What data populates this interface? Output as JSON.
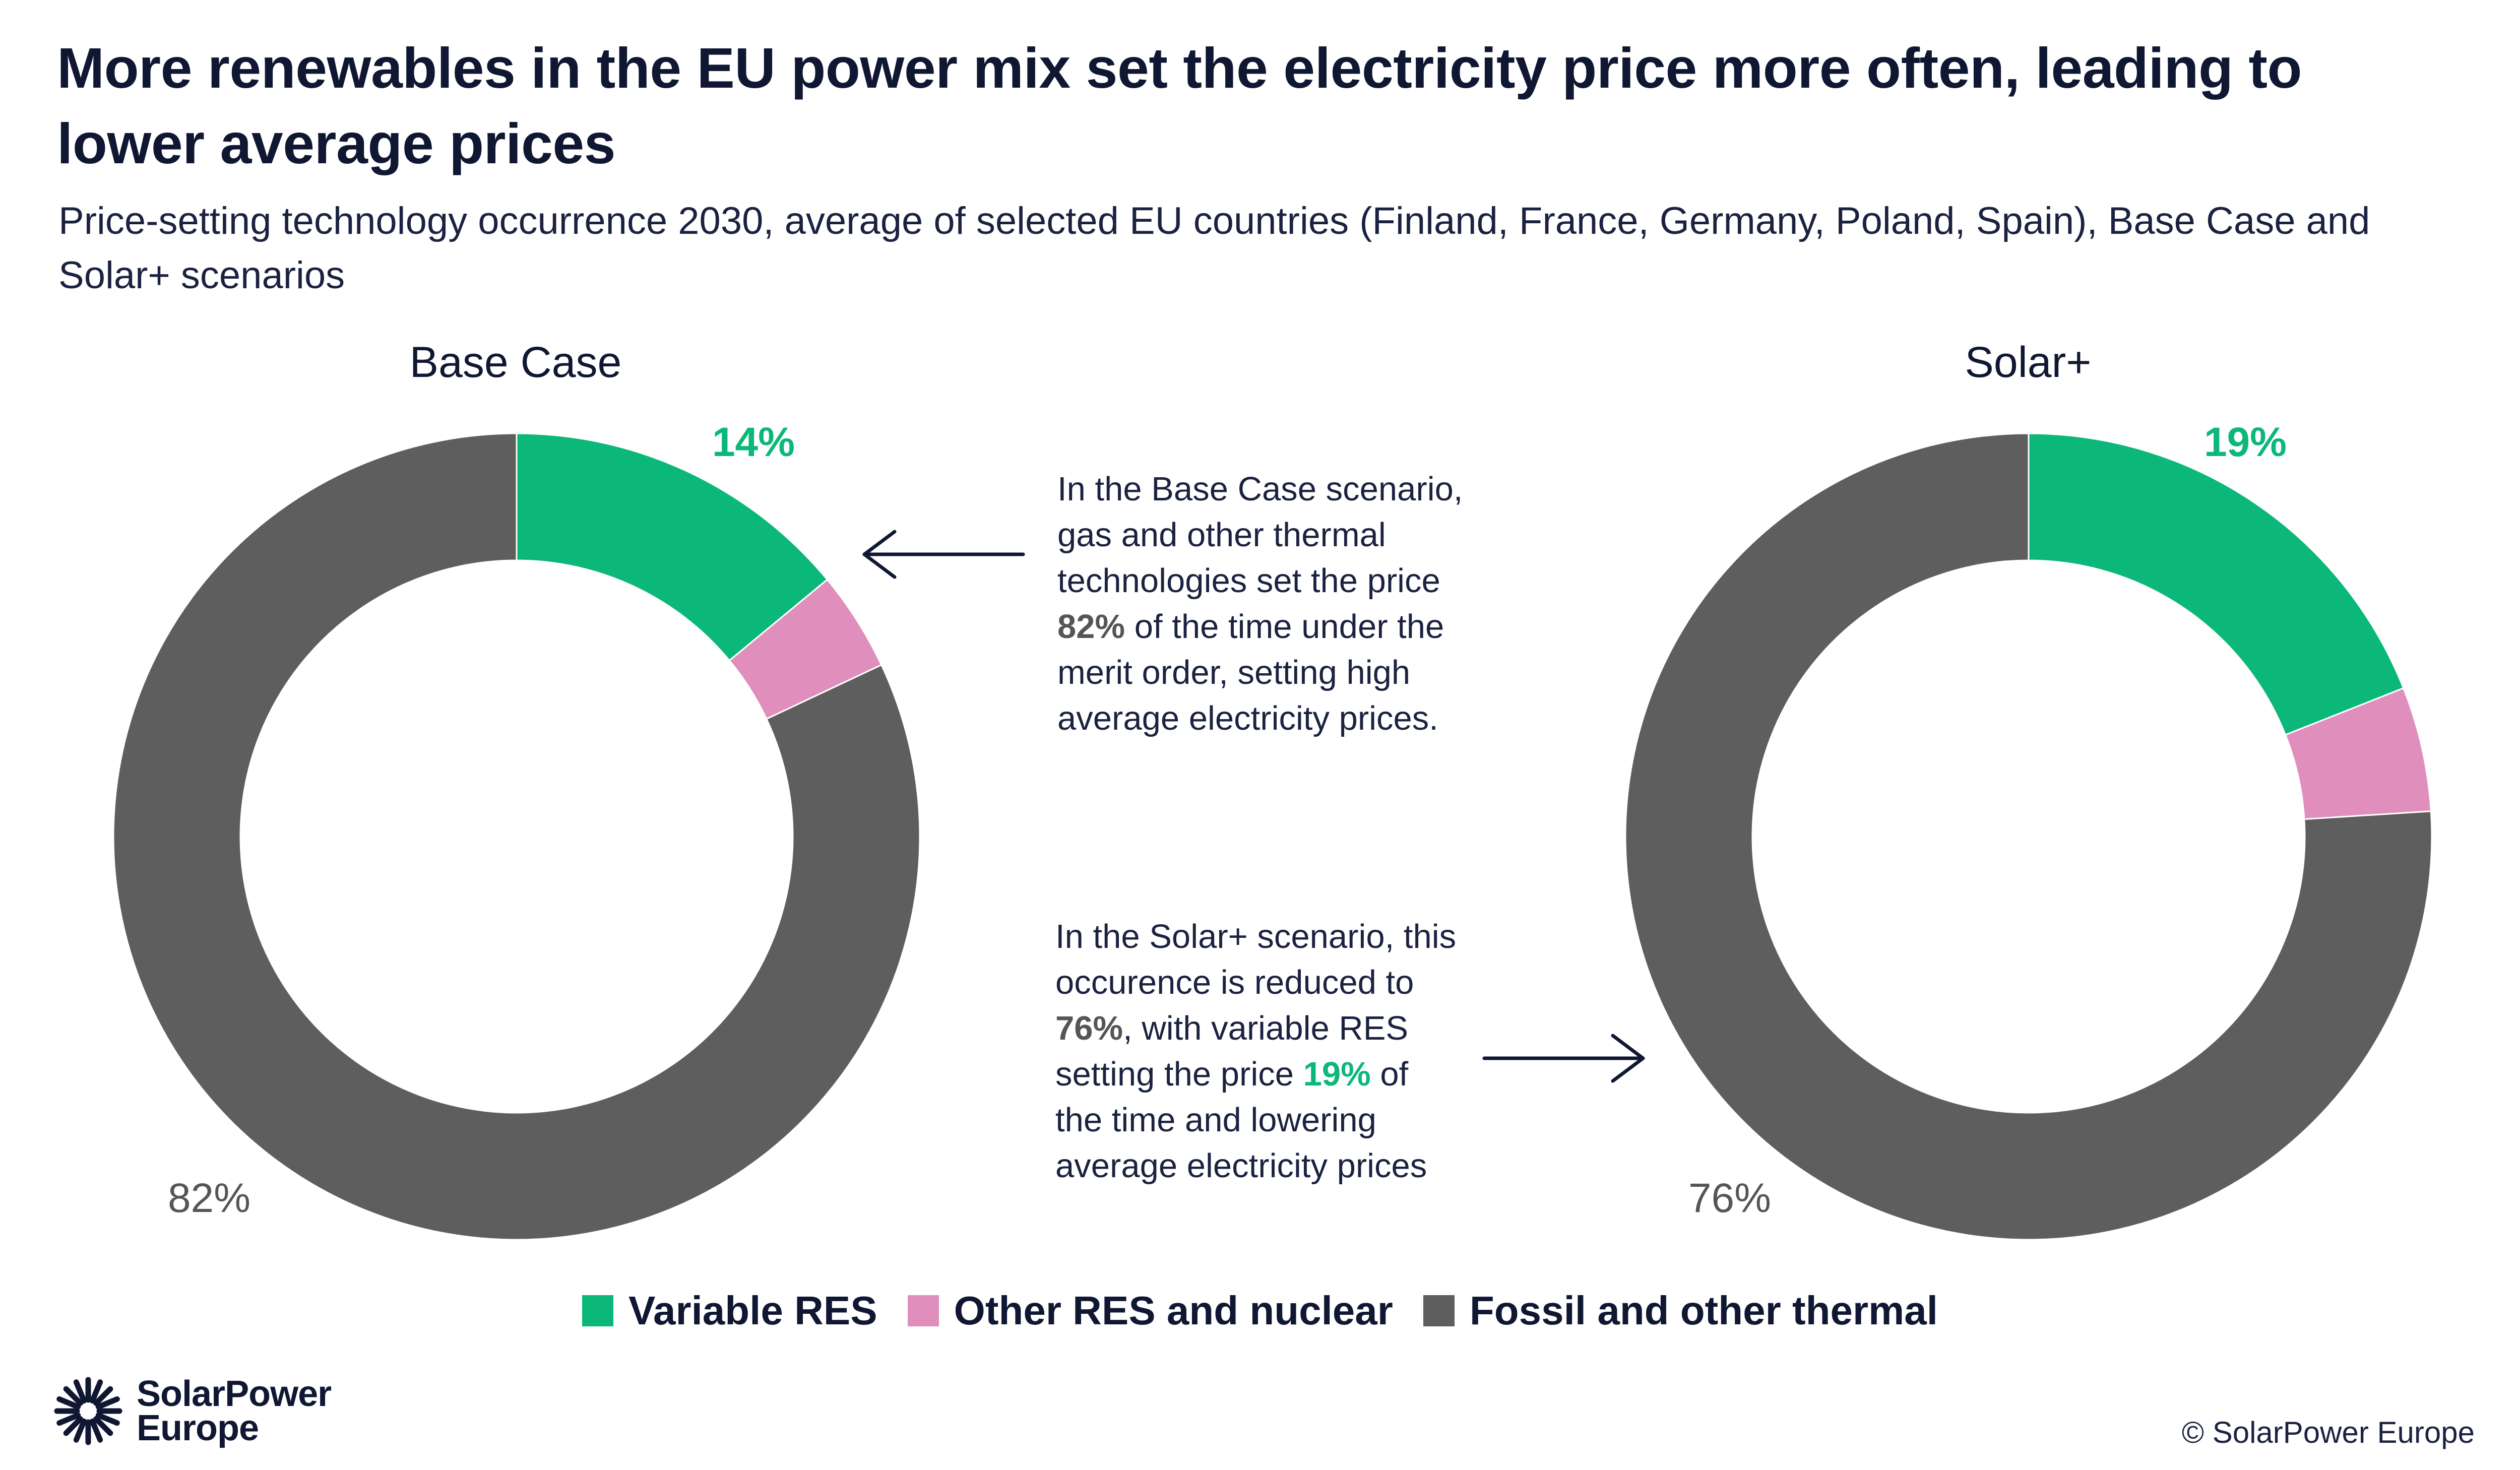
{
  "title": "More renewables in the EU power mix set the electricity price more often, leading to lower average prices",
  "subtitle": "Price-setting technology occurrence 2030, average of selected EU countries (Finland, France, Germany, Poland, Spain), Base Case and Solar+ scenarios",
  "colors": {
    "variable_res": "#0bb87a",
    "other_res": "#e08fbd",
    "fossil": "#5e5e5e",
    "text_dark": "#0f1733",
    "label_gray": "#555555"
  },
  "chart_data": [
    {
      "type": "pie",
      "donut": true,
      "title": "Base Case",
      "categories": [
        "Variable RES",
        "Other RES and nuclear",
        "Fossil and other thermal"
      ],
      "values": [
        14,
        4,
        82
      ],
      "unit": "%",
      "data_labels": {
        "variable_res": "14%",
        "fossil": "82%"
      }
    },
    {
      "type": "pie",
      "donut": true,
      "title": "Solar+",
      "categories": [
        "Variable RES",
        "Other RES and nuclear",
        "Fossil and other thermal"
      ],
      "values": [
        19,
        5,
        76
      ],
      "unit": "%",
      "data_labels": {
        "variable_res": "19%",
        "fossil": "76%"
      }
    }
  ],
  "callouts": {
    "base": {
      "lines": [
        "In the Base Case scenario,",
        "gas and other thermal",
        "technologies set the price",
        "82%",
        " of the time under the",
        "merit order, setting high",
        "average electricity prices."
      ]
    },
    "solar": {
      "l1": "In the Solar+ scenario, this",
      "l2": "occurence is reduced to",
      "l3_bold": "76%",
      "l3_rest": ", with variable RES",
      "l4_pre": "setting the price ",
      "l4_bold": "19%",
      "l4_post": " of",
      "l5": "the time and lowering",
      "l6": "average electricity prices"
    }
  },
  "legend": [
    {
      "label": "Variable RES",
      "color": "#0bb87a"
    },
    {
      "label": "Other RES and nuclear",
      "color": "#e08fbd"
    },
    {
      "label": "Fossil and other thermal",
      "color": "#5e5e5e"
    }
  ],
  "logo": {
    "line1": "SolarPower",
    "line2": "Europe"
  },
  "copyright": "© SolarPower Europe"
}
